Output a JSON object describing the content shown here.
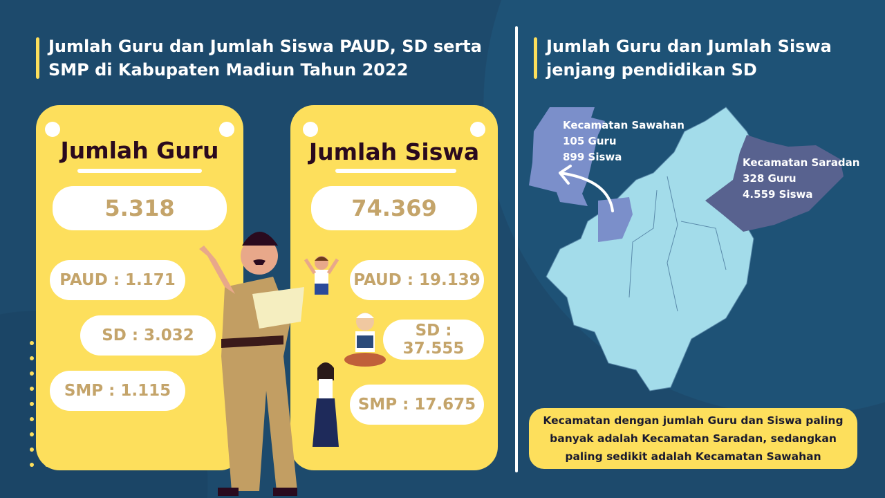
{
  "left": {
    "title_line1": "Jumlah Guru dan Jumlah Siswa PAUD, SD serta",
    "title_line2": "SMP di Kabupaten Madiun Tahun 2022",
    "guru": {
      "heading": "Jumlah Guru",
      "total": "5.318",
      "paud": "PAUD : 1.171",
      "sd": "SD : 3.032",
      "smp": "SMP : 1.115"
    },
    "siswa": {
      "heading": "Jumlah Siswa",
      "total": "74.369",
      "paud": "PAUD : 19.139",
      "sd": "SD : 37.555",
      "smp": "SMP : 17.675"
    }
  },
  "right": {
    "title_line1": "Jumlah Guru dan Jumlah Siswa",
    "title_line2": "jenjang pendidikan SD",
    "sawahan": {
      "name": "Kecamatan Sawahan",
      "guru": "105 Guru",
      "siswa": "899 Siswa",
      "color": "#7b8fca"
    },
    "saradan": {
      "name": "Kecamatan Saradan",
      "guru": "328 Guru",
      "siswa": "4.559 Siswa",
      "color": "#58628f"
    },
    "note": "Kecamatan dengan jumlah Guru dan Siswa paling banyak adalah Kecamatan Saradan, sedangkan paling sedikit adalah Kecamatan Sawahan"
  },
  "colors": {
    "background": "#1d4a6c",
    "card": "#fddf5c",
    "value": "#c4a46a",
    "map": "#a3dcea"
  }
}
